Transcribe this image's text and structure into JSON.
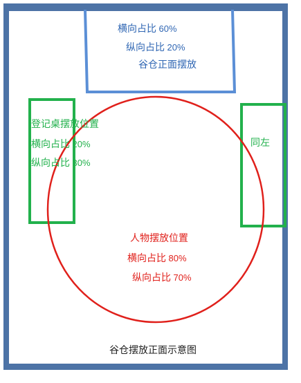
{
  "granary": {
    "line1": "横向占比",
    "line1_value": "60%",
    "line2": "纵向占比",
    "line2_value": "20%",
    "line3": "谷仓正面摆放"
  },
  "desk": {
    "title": "登记桌摆放位置",
    "line1": "横向占比",
    "line1_value": "20%",
    "line2": "纵向占比",
    "line2_value": "30%"
  },
  "right_box": {
    "label": "同左"
  },
  "person": {
    "title": "人物摆放位置",
    "line1": "横向占比",
    "line1_value": "80%",
    "line2": "纵向占比",
    "line2_value": "70%"
  },
  "caption": "谷仓摆放正面示意图",
  "colors": {
    "frame": "#4d73a6",
    "granary_box": "#5b8fd6",
    "green_box": "#22b14c",
    "red_circle": "#e0201b"
  }
}
